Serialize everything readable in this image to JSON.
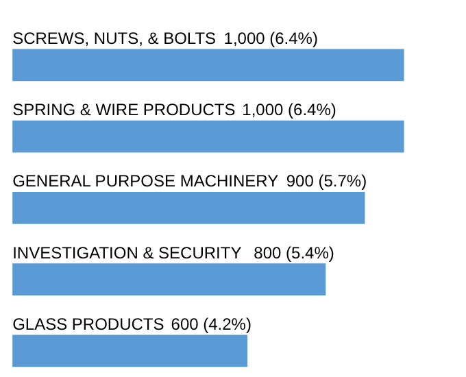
{
  "chart_data": {
    "type": "bar",
    "orientation": "horizontal",
    "categories": [
      "SCREWS, NUTS, & BOLTS",
      "SPRING & WIRE PRODUCTS",
      "GENERAL PURPOSE MACHINERY ",
      "INVESTIGATION  & SECURITY",
      "GLASS PRODUCTS "
    ],
    "values": [
      1000,
      1000,
      900,
      800,
      600
    ],
    "value_labels": [
      "1,000 (6.4%)",
      "1,000 (6.4%)",
      "900 (5.7%)",
      "800 (5.4%)",
      "600 (4.2%)"
    ],
    "color": "#5b9bd5"
  }
}
